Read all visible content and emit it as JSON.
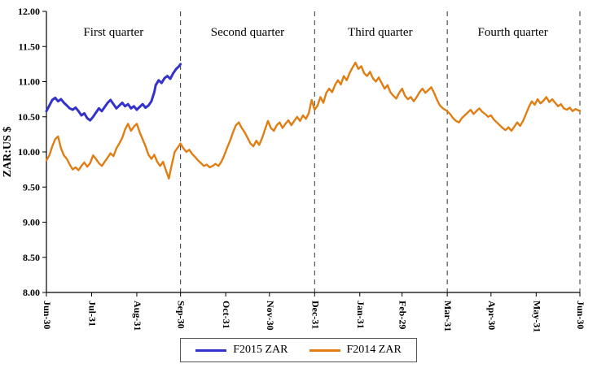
{
  "chart_data": {
    "type": "line",
    "title": "",
    "xlabel": "",
    "ylabel": "ZAR:US $",
    "ylim": [
      8.0,
      12.0
    ],
    "x_range_days": [
      0,
      366
    ],
    "grid": false,
    "y_ticks": [
      {
        "label": "12.00",
        "value": 12.0
      },
      {
        "label": "11.50",
        "value": 11.5
      },
      {
        "label": "11.00",
        "value": 11.0
      },
      {
        "label": "10.50",
        "value": 10.5
      },
      {
        "label": "10.00",
        "value": 10.0
      },
      {
        "label": "9.50",
        "value": 9.5
      },
      {
        "label": "9.00",
        "value": 9.0
      },
      {
        "label": "8.50",
        "value": 8.5
      },
      {
        "label": "8.00",
        "value": 8.0
      }
    ],
    "x_ticks": [
      {
        "label": "Jun-30",
        "day": 0
      },
      {
        "label": "Jul-31",
        "day": 31
      },
      {
        "label": "Aug-31",
        "day": 62
      },
      {
        "label": "Sep-30",
        "day": 92
      },
      {
        "label": "Oct-31",
        "day": 123
      },
      {
        "label": "Nov-30",
        "day": 153
      },
      {
        "label": "Dec-31",
        "day": 184
      },
      {
        "label": "Jan-31",
        "day": 215
      },
      {
        "label": "Feb-29",
        "day": 244
      },
      {
        "label": "Mar-31",
        "day": 275
      },
      {
        "label": "Apr-30",
        "day": 305
      },
      {
        "label": "May-31",
        "day": 336
      },
      {
        "label": "Jun-30",
        "day": 366
      }
    ],
    "quarter_dividers_days": [
      92,
      184,
      275,
      366
    ],
    "quarter_labels": [
      {
        "label": "First quarter",
        "center_day": 46
      },
      {
        "label": "Second quarter",
        "center_day": 138
      },
      {
        "label": "Third quarter",
        "center_day": 229
      },
      {
        "label": "Fourth quarter",
        "center_day": 320
      }
    ],
    "legend": {
      "position": "bottom",
      "entries": [
        {
          "label": "F2015 ZAR",
          "color": "#3333CC"
        },
        {
          "label": "F2014 ZAR",
          "color": "#E07D13"
        }
      ]
    },
    "series": [
      {
        "name": "F2014 ZAR",
        "color": "#E07D13",
        "width": 2.4,
        "points": [
          [
            0,
            9.88
          ],
          [
            2,
            9.95
          ],
          [
            4,
            10.08
          ],
          [
            6,
            10.18
          ],
          [
            8,
            10.22
          ],
          [
            10,
            10.05
          ],
          [
            12,
            9.95
          ],
          [
            14,
            9.9
          ],
          [
            16,
            9.82
          ],
          [
            18,
            9.75
          ],
          [
            20,
            9.78
          ],
          [
            22,
            9.74
          ],
          [
            24,
            9.8
          ],
          [
            26,
            9.85
          ],
          [
            28,
            9.79
          ],
          [
            30,
            9.84
          ],
          [
            32,
            9.95
          ],
          [
            34,
            9.9
          ],
          [
            36,
            9.84
          ],
          [
            38,
            9.8
          ],
          [
            40,
            9.86
          ],
          [
            42,
            9.92
          ],
          [
            44,
            9.98
          ],
          [
            46,
            9.94
          ],
          [
            48,
            10.05
          ],
          [
            50,
            10.12
          ],
          [
            52,
            10.2
          ],
          [
            54,
            10.32
          ],
          [
            56,
            10.4
          ],
          [
            58,
            10.3
          ],
          [
            60,
            10.36
          ],
          [
            62,
            10.4
          ],
          [
            64,
            10.28
          ],
          [
            66,
            10.18
          ],
          [
            68,
            10.08
          ],
          [
            70,
            9.96
          ],
          [
            72,
            9.9
          ],
          [
            74,
            9.96
          ],
          [
            76,
            9.86
          ],
          [
            78,
            9.8
          ],
          [
            80,
            9.86
          ],
          [
            82,
            9.74
          ],
          [
            84,
            9.62
          ],
          [
            86,
            9.82
          ],
          [
            88,
            10.0
          ],
          [
            90,
            10.06
          ],
          [
            92,
            10.12
          ],
          [
            94,
            10.05
          ],
          [
            96,
            10.0
          ],
          [
            98,
            10.03
          ],
          [
            100,
            9.97
          ],
          [
            102,
            9.93
          ],
          [
            104,
            9.88
          ],
          [
            106,
            9.84
          ],
          [
            108,
            9.8
          ],
          [
            110,
            9.82
          ],
          [
            112,
            9.78
          ],
          [
            114,
            9.8
          ],
          [
            116,
            9.83
          ],
          [
            118,
            9.8
          ],
          [
            120,
            9.86
          ],
          [
            122,
            9.95
          ],
          [
            124,
            10.06
          ],
          [
            126,
            10.16
          ],
          [
            128,
            10.28
          ],
          [
            130,
            10.38
          ],
          [
            132,
            10.42
          ],
          [
            134,
            10.34
          ],
          [
            136,
            10.28
          ],
          [
            138,
            10.2
          ],
          [
            140,
            10.12
          ],
          [
            142,
            10.08
          ],
          [
            144,
            10.16
          ],
          [
            146,
            10.1
          ],
          [
            148,
            10.2
          ],
          [
            150,
            10.32
          ],
          [
            152,
            10.44
          ],
          [
            154,
            10.34
          ],
          [
            156,
            10.3
          ],
          [
            158,
            10.38
          ],
          [
            160,
            10.42
          ],
          [
            162,
            10.34
          ],
          [
            164,
            10.4
          ],
          [
            166,
            10.45
          ],
          [
            168,
            10.38
          ],
          [
            170,
            10.44
          ],
          [
            172,
            10.5
          ],
          [
            174,
            10.44
          ],
          [
            176,
            10.52
          ],
          [
            178,
            10.47
          ],
          [
            180,
            10.55
          ],
          [
            182,
            10.74
          ],
          [
            184,
            10.6
          ],
          [
            186,
            10.66
          ],
          [
            188,
            10.78
          ],
          [
            190,
            10.7
          ],
          [
            192,
            10.84
          ],
          [
            194,
            10.9
          ],
          [
            196,
            10.85
          ],
          [
            198,
            10.95
          ],
          [
            200,
            11.02
          ],
          [
            202,
            10.96
          ],
          [
            204,
            11.08
          ],
          [
            206,
            11.02
          ],
          [
            208,
            11.12
          ],
          [
            210,
            11.2
          ],
          [
            212,
            11.27
          ],
          [
            214,
            11.18
          ],
          [
            216,
            11.22
          ],
          [
            218,
            11.12
          ],
          [
            220,
            11.08
          ],
          [
            222,
            11.14
          ],
          [
            224,
            11.05
          ],
          [
            226,
            11.0
          ],
          [
            228,
            11.06
          ],
          [
            230,
            10.98
          ],
          [
            232,
            10.9
          ],
          [
            234,
            10.95
          ],
          [
            236,
            10.85
          ],
          [
            238,
            10.8
          ],
          [
            240,
            10.76
          ],
          [
            242,
            10.84
          ],
          [
            244,
            10.9
          ],
          [
            246,
            10.8
          ],
          [
            248,
            10.75
          ],
          [
            250,
            10.78
          ],
          [
            252,
            10.72
          ],
          [
            254,
            10.78
          ],
          [
            256,
            10.85
          ],
          [
            258,
            10.9
          ],
          [
            260,
            10.84
          ],
          [
            262,
            10.88
          ],
          [
            264,
            10.92
          ],
          [
            266,
            10.84
          ],
          [
            268,
            10.74
          ],
          [
            270,
            10.66
          ],
          [
            272,
            10.62
          ],
          [
            275,
            10.58
          ],
          [
            277,
            10.54
          ],
          [
            279,
            10.48
          ],
          [
            281,
            10.44
          ],
          [
            283,
            10.42
          ],
          [
            285,
            10.48
          ],
          [
            287,
            10.52
          ],
          [
            289,
            10.56
          ],
          [
            291,
            10.6
          ],
          [
            293,
            10.54
          ],
          [
            295,
            10.58
          ],
          [
            297,
            10.62
          ],
          [
            299,
            10.57
          ],
          [
            301,
            10.54
          ],
          [
            303,
            10.5
          ],
          [
            305,
            10.52
          ],
          [
            307,
            10.46
          ],
          [
            309,
            10.42
          ],
          [
            311,
            10.38
          ],
          [
            313,
            10.34
          ],
          [
            315,
            10.31
          ],
          [
            317,
            10.35
          ],
          [
            319,
            10.3
          ],
          [
            321,
            10.36
          ],
          [
            323,
            10.42
          ],
          [
            325,
            10.37
          ],
          [
            327,
            10.44
          ],
          [
            329,
            10.54
          ],
          [
            331,
            10.64
          ],
          [
            333,
            10.72
          ],
          [
            335,
            10.67
          ],
          [
            337,
            10.75
          ],
          [
            339,
            10.69
          ],
          [
            341,
            10.73
          ],
          [
            343,
            10.78
          ],
          [
            345,
            10.71
          ],
          [
            347,
            10.75
          ],
          [
            349,
            10.7
          ],
          [
            351,
            10.65
          ],
          [
            353,
            10.68
          ],
          [
            355,
            10.62
          ],
          [
            357,
            10.6
          ],
          [
            359,
            10.63
          ],
          [
            361,
            10.58
          ],
          [
            363,
            10.61
          ],
          [
            366,
            10.58
          ]
        ]
      },
      {
        "name": "F2015 ZAR",
        "color": "#3333CC",
        "width": 3.0,
        "points": [
          [
            0,
            10.58
          ],
          [
            2,
            10.66
          ],
          [
            4,
            10.74
          ],
          [
            6,
            10.77
          ],
          [
            8,
            10.72
          ],
          [
            10,
            10.75
          ],
          [
            12,
            10.7
          ],
          [
            14,
            10.66
          ],
          [
            16,
            10.62
          ],
          [
            18,
            10.6
          ],
          [
            20,
            10.63
          ],
          [
            22,
            10.58
          ],
          [
            24,
            10.52
          ],
          [
            26,
            10.55
          ],
          [
            28,
            10.48
          ],
          [
            30,
            10.45
          ],
          [
            32,
            10.5
          ],
          [
            34,
            10.56
          ],
          [
            36,
            10.62
          ],
          [
            38,
            10.58
          ],
          [
            40,
            10.64
          ],
          [
            42,
            10.7
          ],
          [
            44,
            10.74
          ],
          [
            46,
            10.68
          ],
          [
            48,
            10.62
          ],
          [
            50,
            10.66
          ],
          [
            52,
            10.7
          ],
          [
            54,
            10.65
          ],
          [
            56,
            10.68
          ],
          [
            58,
            10.62
          ],
          [
            60,
            10.65
          ],
          [
            62,
            10.6
          ],
          [
            64,
            10.64
          ],
          [
            66,
            10.68
          ],
          [
            68,
            10.63
          ],
          [
            70,
            10.66
          ],
          [
            72,
            10.72
          ],
          [
            74,
            10.85
          ],
          [
            75,
            10.95
          ],
          [
            77,
            11.02
          ],
          [
            79,
            10.98
          ],
          [
            81,
            11.05
          ],
          [
            83,
            11.08
          ],
          [
            85,
            11.04
          ],
          [
            87,
            11.12
          ],
          [
            89,
            11.18
          ],
          [
            91,
            11.22
          ],
          [
            92,
            11.25
          ]
        ]
      }
    ]
  }
}
